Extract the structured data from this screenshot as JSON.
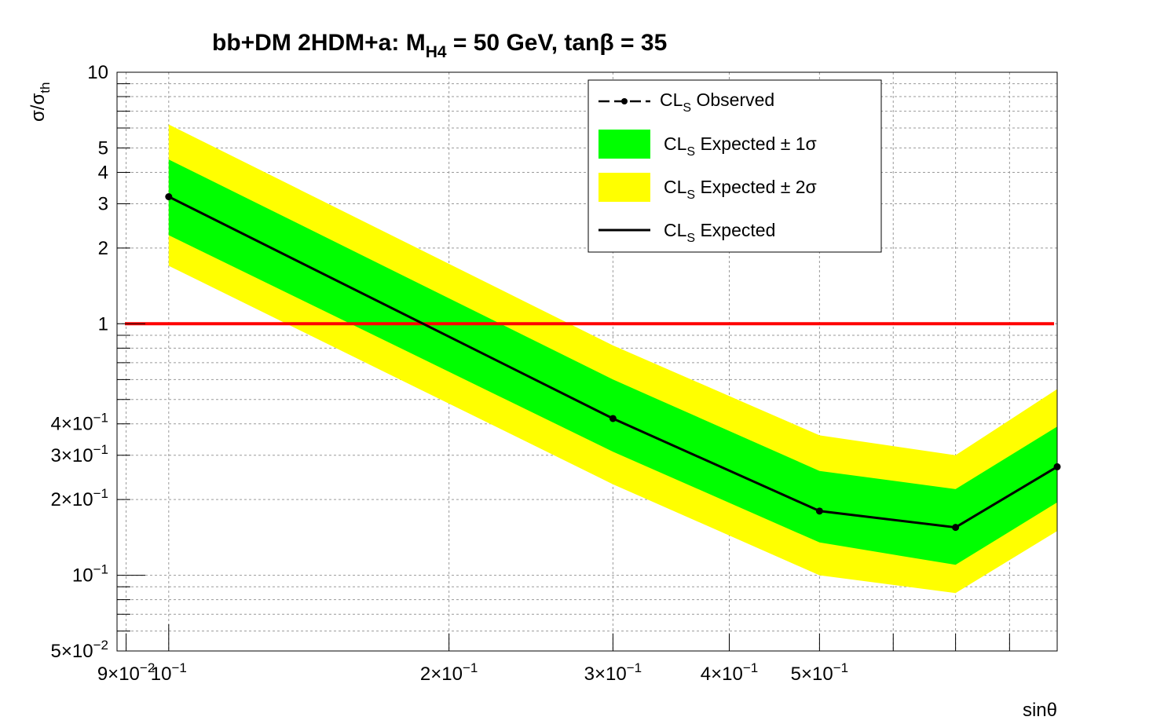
{
  "chart_data": {
    "type": "line",
    "title": {
      "prefix": "bb+DM 2HDM+a: M",
      "sub": "H4",
      "suffix": " = 50 GeV, tanβ = 35"
    },
    "xlabel": "sinθ",
    "ylabel": {
      "main": "σ/σ",
      "sub": "th"
    },
    "xscale": "log",
    "yscale": "log",
    "xlim": [
      0.088,
      0.9
    ],
    "ylim": [
      0.05,
      10
    ],
    "grid": true,
    "x": [
      0.1,
      0.3,
      0.5,
      0.7,
      0.9
    ],
    "observed": [
      3.2,
      0.42,
      0.18,
      0.155,
      0.27
    ],
    "expected": [
      3.2,
      0.42,
      0.18,
      0.155,
      0.27
    ],
    "band_1sigma": {
      "low": [
        2.25,
        0.31,
        0.135,
        0.11,
        0.195
      ],
      "high": [
        4.5,
        0.6,
        0.26,
        0.22,
        0.39
      ]
    },
    "band_2sigma": {
      "low": [
        1.7,
        0.23,
        0.1,
        0.085,
        0.15
      ],
      "high": [
        6.2,
        0.82,
        0.36,
        0.3,
        0.55
      ]
    },
    "reference_line": {
      "y": 1,
      "color": "#ff0000"
    },
    "colors": {
      "band_1sigma": "#00ff00",
      "band_2sigma": "#ffff00",
      "line": "#000000",
      "reference": "#ff0000"
    },
    "x_ticks": [
      {
        "value": 0.09,
        "base": "9×10",
        "exp": "−2"
      },
      {
        "value": 0.1,
        "base": "10",
        "exp": "−1"
      },
      {
        "value": 0.2,
        "base": "2×10",
        "exp": "−1"
      },
      {
        "value": 0.3,
        "base": "3×10",
        "exp": "−1"
      },
      {
        "value": 0.4,
        "base": "4×10",
        "exp": "−1"
      },
      {
        "value": 0.5,
        "base": "5×10",
        "exp": "−1"
      }
    ],
    "y_ticks": [
      {
        "value": 10,
        "base": "10",
        "exp": ""
      },
      {
        "value": 5,
        "base": "5",
        "exp": ""
      },
      {
        "value": 4,
        "base": "4",
        "exp": ""
      },
      {
        "value": 3,
        "base": "3",
        "exp": ""
      },
      {
        "value": 2,
        "base": "2",
        "exp": ""
      },
      {
        "value": 1,
        "base": "1",
        "exp": ""
      },
      {
        "value": 0.4,
        "base": "4×10",
        "exp": "−1"
      },
      {
        "value": 0.3,
        "base": "3×10",
        "exp": "−1"
      },
      {
        "value": 0.2,
        "base": "2×10",
        "exp": "−1"
      },
      {
        "value": 0.1,
        "base": "10",
        "exp": "−1"
      },
      {
        "value": 0.05,
        "base": "5×10",
        "exp": "−2"
      }
    ],
    "legend": {
      "placement": "top-right",
      "entries": [
        {
          "kind": "observed",
          "label": "Observed"
        },
        {
          "kind": "band1",
          "label": " Expected ± 1σ"
        },
        {
          "kind": "band2",
          "label": " Expected ± 2σ"
        },
        {
          "kind": "expected",
          "label": " Expected"
        }
      ],
      "cl_prefix": "CL",
      "cl_sub": "S"
    }
  }
}
